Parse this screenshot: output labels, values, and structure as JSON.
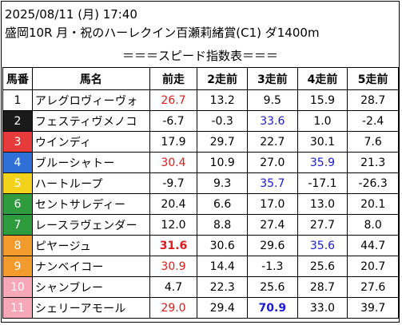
{
  "header": {
    "date_time": "2025/08/11 (月) 17:40",
    "race_title": "盛岡10R 月・祝のハーレクイン百瀬莉緒賞(C1) ダ1400m",
    "section_title": "＝＝＝スピード指数表＝＝＝"
  },
  "table": {
    "columns": [
      "馬番",
      "馬名",
      "前走",
      "2走前",
      "3走前",
      "4走前",
      "5走前"
    ],
    "rows": [
      {
        "num": "1",
        "name": "アレグロヴィーヴォ",
        "v": [
          "26.7",
          "13.2",
          "9.5",
          "15.9",
          "28.7"
        ]
      },
      {
        "num": "2",
        "name": "フェスティヴメノコ",
        "v": [
          "-6.7",
          "-0.3",
          "33.6",
          "1.0",
          "-2.4"
        ]
      },
      {
        "num": "3",
        "name": "ウインディ",
        "v": [
          "17.9",
          "29.7",
          "22.7",
          "30.1",
          "7.6"
        ]
      },
      {
        "num": "4",
        "name": "ブルーシャトー",
        "v": [
          "30.4",
          "10.9",
          "27.0",
          "35.9",
          "21.3"
        ]
      },
      {
        "num": "5",
        "name": "ハートループ",
        "v": [
          "-9.7",
          "9.3",
          "35.7",
          "-17.1",
          "-26.3"
        ]
      },
      {
        "num": "6",
        "name": "セントサレディー",
        "v": [
          "20.4",
          "6.6",
          "17.0",
          "13.0",
          "20.1"
        ]
      },
      {
        "num": "7",
        "name": "レースラヴェンダー",
        "v": [
          "12.0",
          "8.8",
          "27.4",
          "27.7",
          "8.0"
        ]
      },
      {
        "num": "8",
        "name": "ピヤージュ",
        "v": [
          "31.6",
          "30.6",
          "29.6",
          "35.6",
          "44.7"
        ]
      },
      {
        "num": "9",
        "name": "ナンベイコー",
        "v": [
          "30.9",
          "14.4",
          "-1.3",
          "25.6",
          "20.7"
        ]
      },
      {
        "num": "10",
        "name": "シャンブレー",
        "v": [
          "4.7",
          "22.3",
          "25.6",
          "28.7",
          "27.6"
        ]
      },
      {
        "num": "11",
        "name": "シェリーアモール",
        "v": [
          "29.0",
          "29.4",
          "70.9",
          "33.0",
          "39.7"
        ]
      }
    ],
    "colors": {
      "waku_1": "#ffffff",
      "waku_2": "#1a1a1a",
      "waku_3": "#e73a3a",
      "waku_4": "#2f6fd6",
      "waku_5": "#f3d21c",
      "waku_6": "#2e9b3f",
      "waku_7": "#f29a2b",
      "waku_8": "#f7a8b8",
      "highlight_red": "#e01a1a",
      "highlight_blue": "#1a1ad6"
    }
  }
}
